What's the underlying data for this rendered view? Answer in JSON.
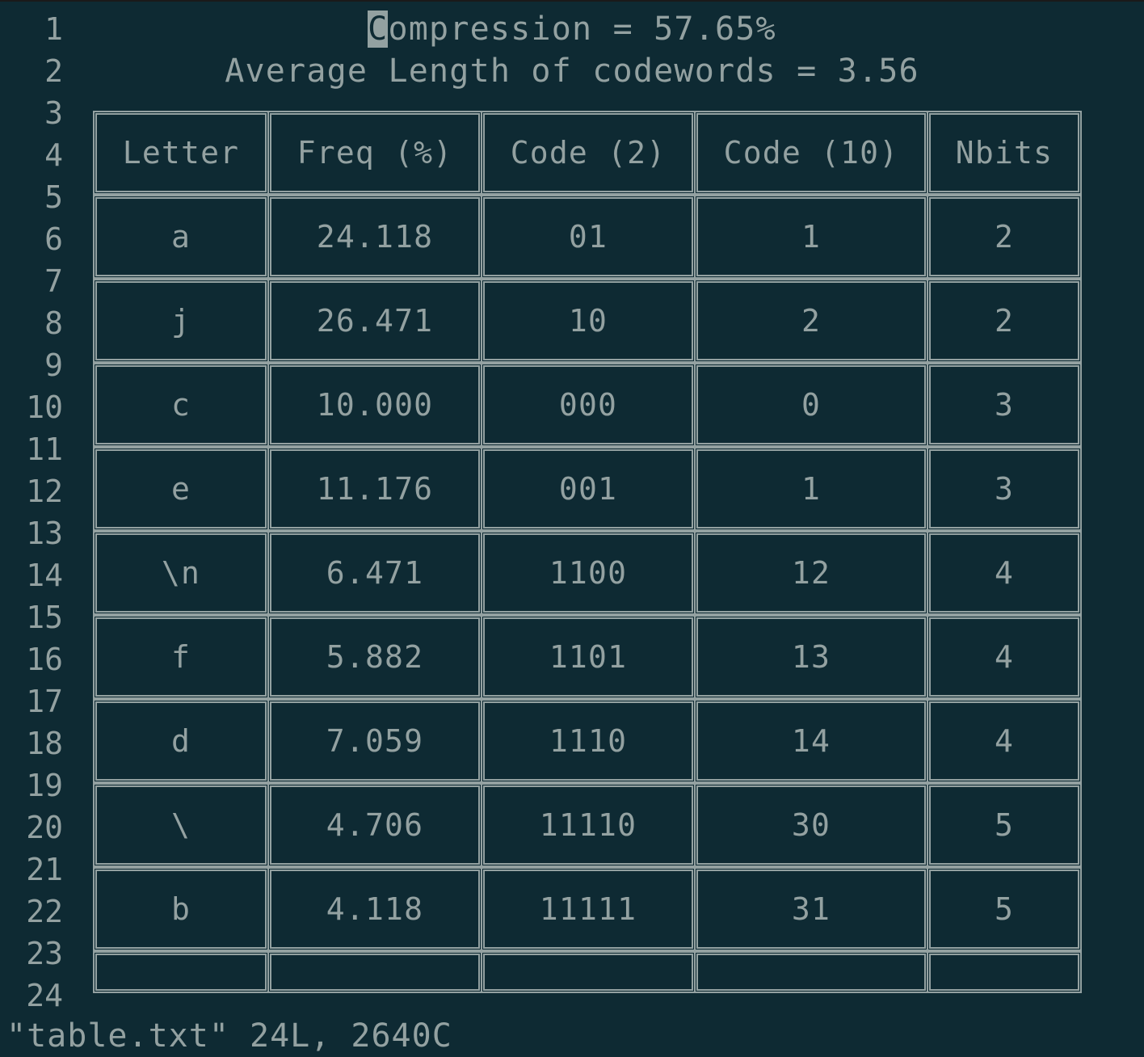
{
  "editor": {
    "line_numbers": [
      "1",
      "2",
      "3",
      "4",
      "5",
      "6",
      "7",
      "8",
      "9",
      "10",
      "11",
      "12",
      "13",
      "14",
      "15",
      "16",
      "17",
      "18",
      "19",
      "20",
      "21",
      "22",
      "23",
      "24"
    ],
    "header": {
      "compression_cursor_char": "C",
      "compression_rest": "ompression = 57.65%",
      "average_length": "Average Length of codewords = 3.56"
    },
    "table": {
      "columns": [
        "Letter",
        "Freq (%)",
        "Code (2)",
        "Code (10)",
        "Nbits"
      ],
      "rows": [
        [
          "a",
          "24.118",
          "01",
          "1",
          "2"
        ],
        [
          "j",
          "26.471",
          "10",
          "2",
          "2"
        ],
        [
          "c",
          "10.000",
          "000",
          "0",
          "3"
        ],
        [
          "e",
          "11.176",
          "001",
          "1",
          "3"
        ],
        [
          "\\n",
          "6.471",
          "1100",
          "12",
          "4"
        ],
        [
          "f",
          "5.882",
          "1101",
          "13",
          "4"
        ],
        [
          "d",
          "7.059",
          "1110",
          "14",
          "4"
        ],
        [
          "\\",
          "4.706",
          "11110",
          "30",
          "5"
        ],
        [
          "b",
          "4.118",
          "11111",
          "31",
          "5"
        ],
        [
          "",
          "",
          "",
          "",
          ""
        ]
      ]
    },
    "status": "\"table.txt\" 24L, 2640C"
  }
}
